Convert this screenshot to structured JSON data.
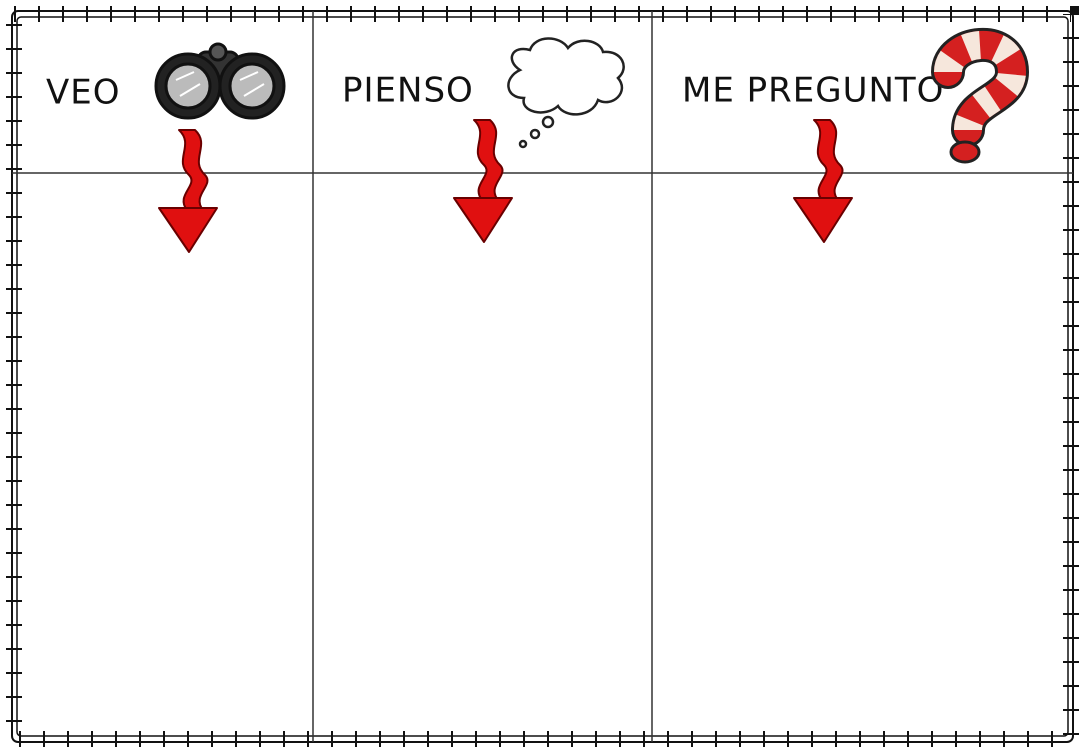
{
  "columns": [
    {
      "heading": "VEO"
    },
    {
      "heading": "PIENSO"
    },
    {
      "heading": "ME PREGUNTO"
    }
  ]
}
